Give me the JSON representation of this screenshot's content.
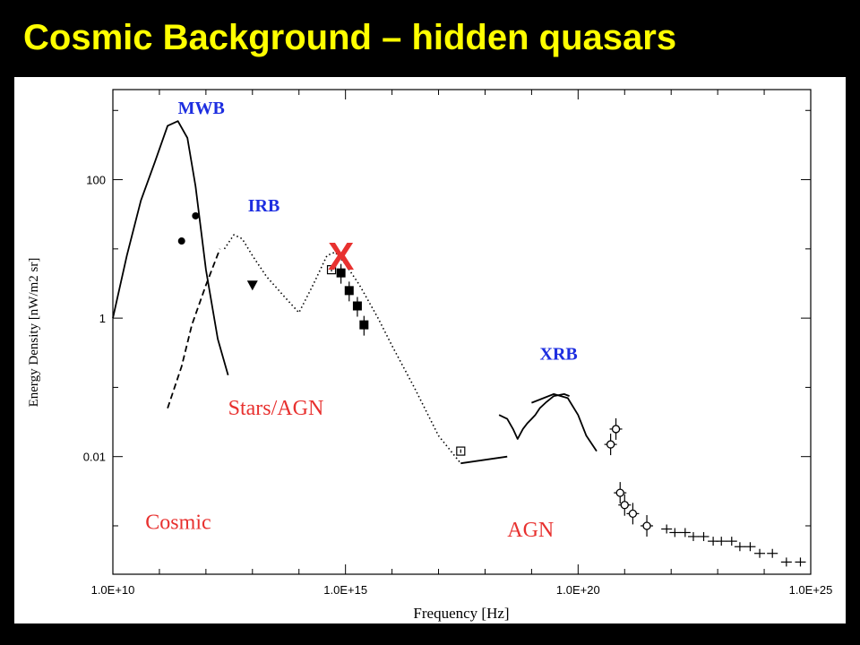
{
  "slide": {
    "title": "Cosmic Background – hidden quasars"
  },
  "colors": {
    "title": "#ffff00",
    "region_label": "#1d2ee0",
    "source_label": "#e8312f",
    "marker_x": "#e8312f",
    "curve": "#000000"
  },
  "chart_data": {
    "type": "line",
    "title": "",
    "xlabel": "Frequency [Hz]",
    "ylabel": "Energy Density [nW/m2 sr]",
    "x_scale": "log",
    "y_scale": "log",
    "xlim": [
      10000000000.0,
      1e+25
    ],
    "ylim": [
      0.0002,
      2000
    ],
    "x_ticks": [
      10000000000.0,
      1000000000000000.0,
      1e+20,
      1e+25
    ],
    "x_tick_labels": [
      "1.0E+10",
      "1.0E+15",
      "1.0E+20",
      "1.0E+25"
    ],
    "y_ticks": [
      0.01,
      1,
      100
    ],
    "y_tick_labels": [
      "0.01",
      "1",
      "100"
    ],
    "grid": false,
    "region_labels": [
      {
        "text": "MWB",
        "x": 250000000000.0,
        "y": 900
      },
      {
        "text": "IRB",
        "x": 8000000000000.0,
        "y": 35
      },
      {
        "text": "XRB",
        "x": 1.5e+19,
        "y": 0.25
      }
    ],
    "source_labels": [
      {
        "text": "Stars/AGN",
        "x": 3000000000000.0,
        "y": 0.04
      },
      {
        "text": "Cosmic",
        "x": 50000000000.0,
        "y": 0.0009
      },
      {
        "text": "AGN",
        "x": 3e+18,
        "y": 0.0007
      }
    ],
    "marker_x": {
      "text": "X",
      "x": 800000000000000.0,
      "y": 5
    },
    "series": [
      {
        "style": "solid",
        "x": [
          10000000000.0,
          20000000000.0,
          40000000000.0,
          80000000000.0,
          150000000000.0,
          250000000000.0,
          400000000000.0,
          600000000000.0,
          1000000000000.0,
          1800000000000.0,
          3000000000000.0
        ],
        "y": [
          1,
          8,
          50,
          180,
          600,
          700,
          400,
          80,
          5,
          0.5,
          0.15
        ]
      },
      {
        "style": "dashed",
        "x": [
          150000000000.0,
          300000000000.0,
          500000000000.0,
          1000000000000.0,
          2000000000000.0
        ],
        "y": [
          0.05,
          0.2,
          0.8,
          3,
          10
        ]
      },
      {
        "style": "dotted",
        "x": [
          2500000000000.0,
          4000000000000.0,
          6000000000000.0,
          10000000000000.0,
          20000000000000.0,
          50000000000000.0,
          100000000000000.0,
          200000000000000.0,
          400000000000000.0,
          600000000000000.0,
          1000000000000000.0,
          2000000000000000.0,
          5000000000000000.0,
          1e+16,
          3e+16,
          1e+17,
          3e+17
        ],
        "y": [
          10,
          16,
          14,
          8,
          4,
          2,
          1.2,
          3,
          8,
          9,
          6,
          3,
          1,
          0.4,
          0.1,
          0.02,
          0.008
        ]
      },
      {
        "style": "solid",
        "x": [
          3e+17,
          3e+18
        ],
        "y": [
          0.008,
          0.01
        ]
      },
      {
        "style": "solid",
        "x": [
          1e+19,
          3e+19,
          6e+19,
          1e+20,
          1.5e+20,
          2.5e+20
        ],
        "y": [
          0.06,
          0.08,
          0.07,
          0.04,
          0.02,
          0.012
        ]
      },
      {
        "style": "solid",
        "x": [
          2e+18,
          3e+18,
          4e+18,
          5e+18,
          6.5e+18,
          8e+18,
          1e+19,
          1.2e+19,
          1.5e+19,
          2e+19,
          3e+19,
          5e+19,
          6.5e+19
        ],
        "y": [
          0.04,
          0.035,
          0.025,
          0.018,
          0.025,
          0.03,
          0.035,
          0.04,
          0.05,
          0.06,
          0.075,
          0.08,
          0.075
        ]
      }
    ],
    "points": {
      "filled_circle": [
        {
          "x": 300000000000.0,
          "y": 13
        },
        {
          "x": 600000000000.0,
          "y": 30
        }
      ],
      "filled_triangle": [
        {
          "x": 10000000000000.0,
          "y": 3
        }
      ],
      "open_square": [
        {
          "x": 500000000000000.0,
          "y": 5
        },
        {
          "x": 3e+17,
          "y": 0.012
        }
      ],
      "filled_square": [
        {
          "x": 800000000000000.0,
          "y": 4.5
        },
        {
          "x": 1200000000000000.0,
          "y": 2.5
        },
        {
          "x": 1800000000000000.0,
          "y": 1.5
        },
        {
          "x": 2500000000000000.0,
          "y": 0.8
        }
      ],
      "open_circle_cross": [
        {
          "x": 5e+20,
          "y": 0.015
        },
        {
          "x": 6.5e+20,
          "y": 0.025
        },
        {
          "x": 8e+20,
          "y": 0.003
        },
        {
          "x": 1e+21,
          "y": 0.002
        },
        {
          "x": 1.5e+21,
          "y": 0.0015
        },
        {
          "x": 3e+21,
          "y": 0.001
        }
      ],
      "plus_tail": [
        {
          "x": 8e+21,
          "y": 0.0009
        },
        {
          "x": 1.2e+22,
          "y": 0.0008
        },
        {
          "x": 2e+22,
          "y": 0.0008
        },
        {
          "x": 3e+22,
          "y": 0.0007
        },
        {
          "x": 5e+22,
          "y": 0.0007
        },
        {
          "x": 8e+22,
          "y": 0.0006
        },
        {
          "x": 1.2e+23,
          "y": 0.0006
        },
        {
          "x": 2e+23,
          "y": 0.0006
        },
        {
          "x": 3e+23,
          "y": 0.0005
        },
        {
          "x": 5e+23,
          "y": 0.0005
        },
        {
          "x": 8e+23,
          "y": 0.0004
        },
        {
          "x": 1.5e+24,
          "y": 0.0004
        },
        {
          "x": 3e+24,
          "y": 0.0003
        },
        {
          "x": 6e+24,
          "y": 0.0003
        }
      ]
    }
  }
}
